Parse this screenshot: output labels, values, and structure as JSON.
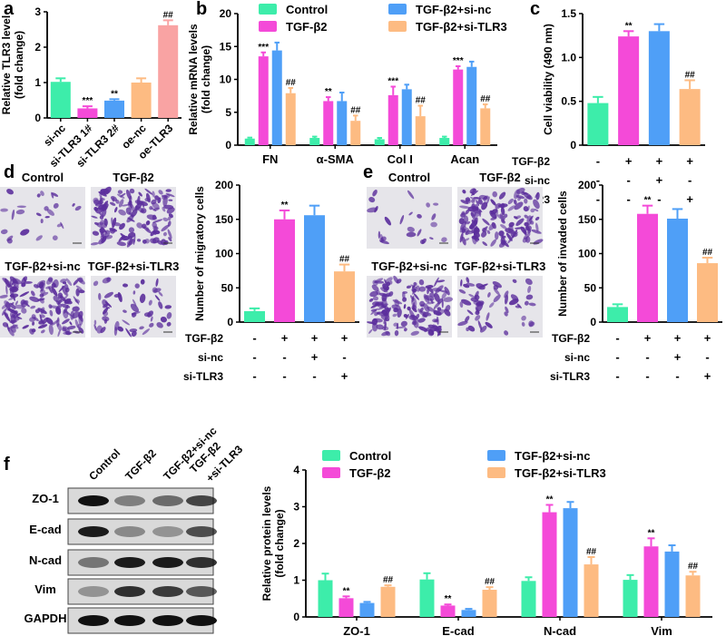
{
  "panel_letters": [
    "a",
    "b",
    "c",
    "d",
    "e",
    "f"
  ],
  "colors": {
    "control": "#3dedaa",
    "tgf": "#f44ad8",
    "sinc": "#4f9ff7",
    "sitlr3": "#fdbb82",
    "oetlr3": "#f9a3a3"
  },
  "chart_data": [
    {
      "id": "a",
      "type": "bar",
      "ylabel": "Relative TLR3 level",
      "ylabel2": "(fold change)",
      "ylim": [
        0,
        3
      ],
      "ticks": [
        "0",
        "1",
        "2",
        "3"
      ],
      "categories": [
        "si-nc",
        "si-TLR3 1#",
        "si-TLR3 2#",
        "oe-nc",
        "oe-TLR3"
      ],
      "values": [
        1.02,
        0.27,
        0.49,
        1.0,
        2.62
      ],
      "errors": [
        0.1,
        0.06,
        0.04,
        0.12,
        0.14
      ],
      "annotations": [
        "",
        "***",
        "**",
        "",
        "##"
      ],
      "bar_colors": [
        "#3dedaa",
        "#f44ad8",
        "#4f9ff7",
        "#fdbb82",
        "#f9a3a3"
      ]
    },
    {
      "id": "b",
      "type": "bar",
      "ylabel": "Relative mRNA levels",
      "ylabel2": "(fold change)",
      "ylim": [
        0,
        20
      ],
      "ticks": [
        "0",
        "5",
        "10",
        "15",
        "20"
      ],
      "categories": [
        "FN",
        "α-SMA",
        "Col I",
        "Acan"
      ],
      "legend": [
        "Control",
        "TGF-β2",
        "TGF-β2+si-nc",
        "TGF-β2+si-TLR3"
      ],
      "series": [
        {
          "name": "Control",
          "values": [
            1.0,
            1.1,
            0.9,
            1.1
          ],
          "errors": [
            0.15,
            0.2,
            0.2,
            0.2
          ],
          "annotations": [
            "",
            "",
            "",
            ""
          ]
        },
        {
          "name": "TGF-β2",
          "values": [
            13.5,
            6.7,
            7.6,
            11.5
          ],
          "errors": [
            0.6,
            0.6,
            1.3,
            0.5
          ],
          "annotations": [
            "***",
            "**",
            "***",
            "***"
          ]
        },
        {
          "name": "TGF-β2+si-nc",
          "values": [
            14.4,
            6.7,
            8.5,
            11.9
          ],
          "errors": [
            1.2,
            1.3,
            0.7,
            0.8
          ],
          "annotations": [
            "",
            "",
            "",
            ""
          ]
        },
        {
          "name": "TGF-β2+si-TLR3",
          "values": [
            7.9,
            3.7,
            4.4,
            5.6
          ],
          "errors": [
            0.8,
            0.8,
            1.6,
            0.6
          ],
          "annotations": [
            "##",
            "##",
            "##",
            "##"
          ]
        }
      ]
    },
    {
      "id": "c",
      "type": "bar",
      "ylabel": "Cell viability (490 nm)",
      "ylim": [
        0,
        1.5
      ],
      "ticks": [
        "0",
        "0.5",
        "1.0",
        "1.5"
      ],
      "values": [
        0.48,
        1.24,
        1.3,
        0.64
      ],
      "errors": [
        0.07,
        0.06,
        0.08,
        0.1
      ],
      "annotations": [
        "",
        "**",
        "",
        "##"
      ],
      "bar_colors": [
        "#3dedaa",
        "#f44ad8",
        "#4f9ff7",
        "#fdbb82"
      ],
      "conditions": [
        {
          "label": "TGF-β2",
          "marks": [
            "-",
            "+",
            "+",
            "+"
          ]
        },
        {
          "label": "si-nc",
          "marks": [
            "-",
            "-",
            "+",
            "-"
          ]
        },
        {
          "label": "si-TLR3",
          "marks": [
            "-",
            "-",
            "-",
            "+"
          ]
        }
      ]
    },
    {
      "id": "d",
      "type": "bar",
      "ylabel": "Number of migratory cells",
      "ylim": [
        0,
        200
      ],
      "ticks": [
        "0",
        "50",
        "100",
        "150",
        "200"
      ],
      "values": [
        16,
        150,
        156,
        74
      ],
      "errors": [
        4,
        13,
        14,
        10
      ],
      "annotations": [
        "",
        "**",
        "",
        "##"
      ],
      "bar_colors": [
        "#3dedaa",
        "#f44ad8",
        "#4f9ff7",
        "#fdbb82"
      ],
      "image_labels": [
        "Control",
        "TGF-β2",
        "TGF-β2+si-nc",
        "TGF-β2+si-TLR3"
      ],
      "conditions": [
        {
          "label": "TGF-β2",
          "marks": [
            "-",
            "+",
            "+",
            "+"
          ]
        },
        {
          "label": "si-nc",
          "marks": [
            "-",
            "-",
            "+",
            "-"
          ]
        },
        {
          "label": "si-TLR3",
          "marks": [
            "-",
            "-",
            "-",
            "+"
          ]
        }
      ]
    },
    {
      "id": "e",
      "type": "bar",
      "ylabel": "Number of invaded cells",
      "ylim": [
        0,
        200
      ],
      "ticks": [
        "0",
        "50",
        "100",
        "150",
        "200"
      ],
      "values": [
        22,
        158,
        151,
        86
      ],
      "errors": [
        4,
        12,
        14,
        8
      ],
      "annotations": [
        "",
        "**",
        "",
        "##"
      ],
      "bar_colors": [
        "#3dedaa",
        "#f44ad8",
        "#4f9ff7",
        "#fdbb82"
      ],
      "image_labels": [
        "Control",
        "TGF-β2",
        "TGF-β2+si-nc",
        "TGF-β2+si-TLR3"
      ],
      "conditions": [
        {
          "label": "TGF-β2",
          "marks": [
            "-",
            "+",
            "+",
            "+"
          ]
        },
        {
          "label": "si-nc",
          "marks": [
            "-",
            "-",
            "+",
            "-"
          ]
        },
        {
          "label": "si-TLR3",
          "marks": [
            "-",
            "-",
            "-",
            "+"
          ]
        }
      ]
    },
    {
      "id": "f",
      "type": "bar",
      "ylabel": "Relative protein levels",
      "ylabel2": "(fold change)",
      "ylim": [
        0,
        4
      ],
      "ticks": [
        "0",
        "1",
        "2",
        "3",
        "4"
      ],
      "categories": [
        "ZO-1",
        "E-cad",
        "N-cad",
        "Vim"
      ],
      "legend": [
        "Control",
        "TGF-β2",
        "TGF-β2+si-nc",
        "TGF-β2+si-TLR3"
      ],
      "series": [
        {
          "name": "Control",
          "values": [
            1.0,
            1.02,
            0.98,
            1.01
          ],
          "errors": [
            0.18,
            0.17,
            0.1,
            0.13
          ],
          "annotations": [
            "",
            "",
            "",
            ""
          ]
        },
        {
          "name": "TGF-β2",
          "values": [
            0.51,
            0.31,
            2.85,
            1.92
          ],
          "errors": [
            0.05,
            0.03,
            0.2,
            0.22
          ],
          "annotations": [
            "**",
            "**",
            "**",
            "**"
          ]
        },
        {
          "name": "TGF-β2+si-nc",
          "values": [
            0.38,
            0.19,
            2.96,
            1.78
          ],
          "errors": [
            0.03,
            0.03,
            0.17,
            0.17
          ],
          "annotations": [
            "",
            "",
            "",
            ""
          ]
        },
        {
          "name": "TGF-β2+si-TLR3",
          "values": [
            0.82,
            0.74,
            1.43,
            1.13
          ],
          "errors": [
            0.04,
            0.07,
            0.2,
            0.1
          ],
          "annotations": [
            "##",
            "##",
            "##",
            "##"
          ]
        }
      ],
      "blot": {
        "lanes": [
          "Control",
          "TGF-β2",
          "TGF-β2+si-nc",
          "TGF-β2",
          "+si-TLR3"
        ],
        "rows": [
          "ZO-1",
          "E-cad",
          "N-cad",
          "Vim",
          "GAPDH"
        ]
      }
    }
  ]
}
